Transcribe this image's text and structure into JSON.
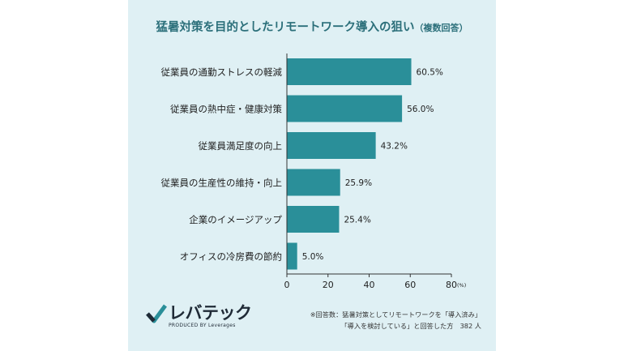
{
  "chart_data": {
    "type": "bar",
    "orientation": "horizontal",
    "title": "猛暑対策を目的としたリモートワーク導入の狙い",
    "subtitle": "（複数回答）",
    "categories": [
      "従業員の通勤ストレスの軽減",
      "従業員の熱中症・健康対策",
      "従業員満足度の向上",
      "従業員の生産性の維持・向上",
      "企業のイメージアップ",
      "オフィスの冷房費の節約"
    ],
    "values": [
      60.5,
      56.0,
      43.2,
      25.9,
      25.4,
      5.0
    ],
    "value_labels": [
      "60.5%",
      "56.0%",
      "43.2%",
      "25.9%",
      "25.4%",
      "5.0%"
    ],
    "x_ticks": [
      "0",
      "20",
      "40",
      "60",
      "80"
    ],
    "x_unit": "(%)",
    "xlim": [
      0,
      80
    ],
    "grid": false,
    "bar_color": "#2a8f99"
  },
  "brand": {
    "logo_text": "レバテック",
    "logo_sub": "PRODUCED BY Leverages"
  },
  "note": {
    "line1": "※回答数：猛暑対策としてリモートワークを「導入済み」",
    "line2": "「導入を検討している」と回答した方　382 人"
  },
  "colors": {
    "panel_bg": "#dff0f4",
    "title": "#2b6f7a",
    "bar": "#2a8f99"
  }
}
